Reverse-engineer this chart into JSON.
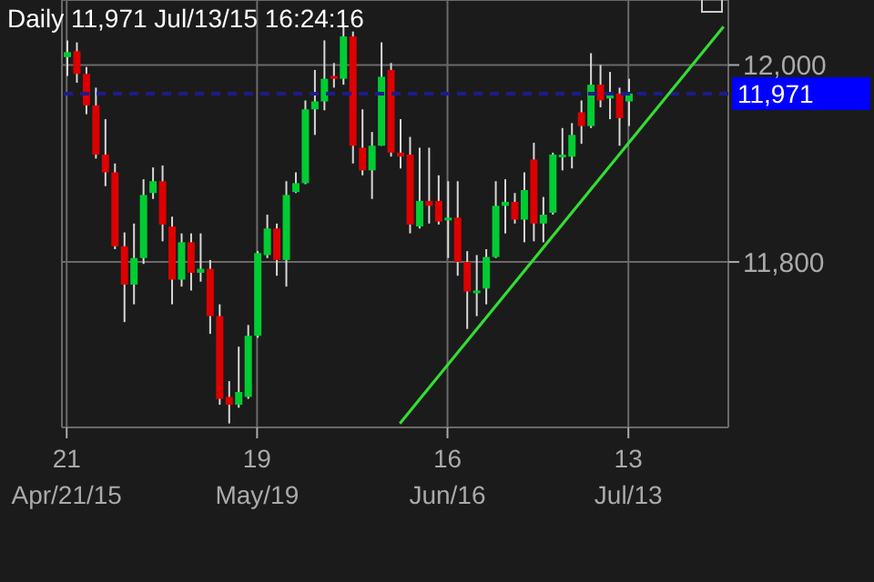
{
  "chart_data": {
    "type": "candlestick",
    "title": "Daily 11,971 Jul/13/15 16:24:16",
    "categories": [
      "21\nApr/21/15",
      null,
      null,
      null,
      null,
      null,
      null,
      null,
      null,
      null,
      null,
      null,
      null,
      null,
      null,
      null,
      null,
      null,
      null,
      null,
      "19\nMay/19",
      null,
      null,
      null,
      null,
      null,
      null,
      null,
      null,
      null,
      null,
      null,
      null,
      null,
      null,
      null,
      null,
      null,
      null,
      null,
      "16\nJun/16",
      null,
      null,
      null,
      null,
      null,
      null,
      null,
      null,
      null,
      null,
      null,
      null,
      null,
      null,
      null,
      null,
      null,
      null,
      "13\nJul/13",
      null,
      null,
      null,
      null,
      null,
      null,
      null,
      null,
      null,
      null
    ],
    "ohlc": [
      [
        12008,
        12025,
        11989,
        12013
      ],
      [
        12014,
        12023,
        11982,
        11991
      ],
      [
        11991,
        11998,
        11950,
        11959
      ],
      [
        11959,
        11977,
        11905,
        11909
      ],
      [
        11909,
        11945,
        11877,
        11891
      ],
      [
        11891,
        11900,
        11813,
        11816
      ],
      [
        11816,
        11830,
        11739,
        11777
      ],
      [
        11777,
        11839,
        11757,
        11804
      ],
      [
        11804,
        11884,
        11798,
        11868
      ],
      [
        11870,
        11896,
        11864,
        11882
      ],
      [
        11882,
        11898,
        11821,
        11838
      ],
      [
        11836,
        11846,
        11757,
        11782
      ],
      [
        11782,
        11829,
        11775,
        11820
      ],
      [
        11820,
        11829,
        11771,
        11789
      ],
      [
        11789,
        11829,
        11780,
        11793
      ],
      [
        11793,
        11802,
        11727,
        11745
      ],
      [
        11745,
        11757,
        11655,
        11661
      ],
      [
        11663,
        11679,
        11636,
        11655
      ],
      [
        11655,
        11714,
        11652,
        11668
      ],
      [
        11663,
        11736,
        11661,
        11725
      ],
      [
        11725,
        11811,
        11723,
        11809
      ],
      [
        11807,
        11848,
        11804,
        11834
      ],
      [
        11834,
        11839,
        11786,
        11802
      ],
      [
        11802,
        11882,
        11775,
        11868
      ],
      [
        11871,
        11891,
        11870,
        11880
      ],
      [
        11880,
        11964,
        11879,
        11955
      ],
      [
        11955,
        11995,
        11929,
        11963
      ],
      [
        11963,
        12025,
        11954,
        11986
      ],
      [
        11989,
        12002,
        11977,
        11986
      ],
      [
        11986,
        12043,
        11980,
        12029
      ],
      [
        12029,
        12034,
        11900,
        11918
      ],
      [
        11916,
        11955,
        11888,
        11893
      ],
      [
        11893,
        11932,
        11864,
        11918
      ],
      [
        11918,
        12023,
        11918,
        11988
      ],
      [
        11995,
        12002,
        11907,
        11911
      ],
      [
        11911,
        11945,
        11895,
        11907
      ],
      [
        11909,
        11927,
        11829,
        11838
      ],
      [
        11836,
        11916,
        11834,
        11862
      ],
      [
        11862,
        11916,
        11839,
        11857
      ],
      [
        11862,
        11888,
        11838,
        11841
      ],
      [
        11843,
        11882,
        11804,
        11845
      ],
      [
        11845,
        11882,
        11786,
        11800
      ],
      [
        11800,
        11811,
        11732,
        11770
      ],
      [
        11770,
        11807,
        11745,
        11771
      ],
      [
        11773,
        11813,
        11757,
        11805
      ],
      [
        11805,
        11882,
        11804,
        11857
      ],
      [
        11857,
        11884,
        11829,
        11861
      ],
      [
        11861,
        11870,
        11839,
        11843
      ],
      [
        11843,
        11891,
        11820,
        11873
      ],
      [
        11904,
        11921,
        11821,
        11839
      ],
      [
        11839,
        11866,
        11820,
        11848
      ],
      [
        11850,
        11911,
        11848,
        11909
      ],
      [
        11907,
        11936,
        11893,
        11909
      ],
      [
        11907,
        11941,
        11895,
        11929
      ],
      [
        11952,
        11964,
        11920,
        11938
      ],
      [
        11938,
        12012,
        11936,
        11980
      ],
      [
        11980,
        12000,
        11957,
        11964
      ],
      [
        11966,
        11993,
        11945,
        11971
      ],
      [
        11971,
        11977,
        11918,
        11946
      ],
      [
        11963,
        11986,
        11938,
        11971
      ],
      null,
      null,
      null,
      null,
      null,
      null,
      null,
      null,
      null,
      null
    ],
    "colors": [
      "#00cc33",
      "#dd0000",
      "#dd0000",
      "#dd0000",
      "#dd0000",
      "#dd0000",
      "#dd0000",
      "#00cc33",
      "#00cc33",
      "#00cc33",
      "#dd0000",
      "#dd0000",
      "#00cc33",
      "#dd0000",
      "#00cc33",
      "#dd0000",
      "#dd0000",
      "#dd0000",
      "#00cc33",
      "#00cc33",
      "#00cc33",
      "#00cc33",
      "#dd0000",
      "#00cc33",
      "#00cc33",
      "#00cc33",
      "#00cc33",
      "#00cc33",
      "#dd0000",
      "#00cc33",
      "#dd0000",
      "#dd0000",
      "#00cc33",
      "#00cc33",
      "#dd0000",
      "#dd0000",
      "#dd0000",
      "#00cc33",
      "#dd0000",
      "#dd0000",
      "#00cc33",
      "#dd0000",
      "#dd0000",
      "#00cc33",
      "#00cc33",
      "#00cc33",
      "#00cc33",
      "#dd0000",
      "#00cc33",
      "#dd0000",
      "#00cc33",
      "#00cc33",
      "#00cc33",
      "#00cc33",
      "#dd0000",
      "#00cc33",
      "#dd0000",
      "#00cc33",
      "#dd0000",
      "#00cc33",
      null,
      null,
      null,
      null,
      null,
      null,
      null,
      null,
      null,
      null
    ],
    "series": [
      {
        "type": "line",
        "color": "#33dd33",
        "values": [
          null,
          null,
          null,
          null,
          null,
          null,
          null,
          null,
          null,
          null,
          null,
          null,
          null,
          null,
          null,
          null,
          null,
          null,
          null,
          null,
          null,
          null,
          null,
          null,
          null,
          null,
          null,
          null,
          null,
          null,
          null,
          null,
          null,
          null,
          null,
          11636,
          null,
          null,
          null,
          null,
          null,
          null,
          null,
          null,
          null,
          null,
          null,
          null,
          null,
          null,
          null,
          null,
          null,
          null,
          null,
          null,
          null,
          null,
          null,
          null,
          null,
          null,
          null,
          null,
          null,
          null,
          null,
          null,
          null,
          12039
        ]
      }
    ],
    "ylim": [
      11632,
      12066
    ],
    "yticks": [
      {
        "value": 12000,
        "label": "12,000"
      },
      {
        "value": 11800,
        "label": "11,800"
      }
    ],
    "grid": true,
    "ref_lines": [
      {
        "axis": "y",
        "value": 11971,
        "label": "11,971",
        "color": "#1c1c8c",
        "line_style": "dashed"
      }
    ]
  }
}
